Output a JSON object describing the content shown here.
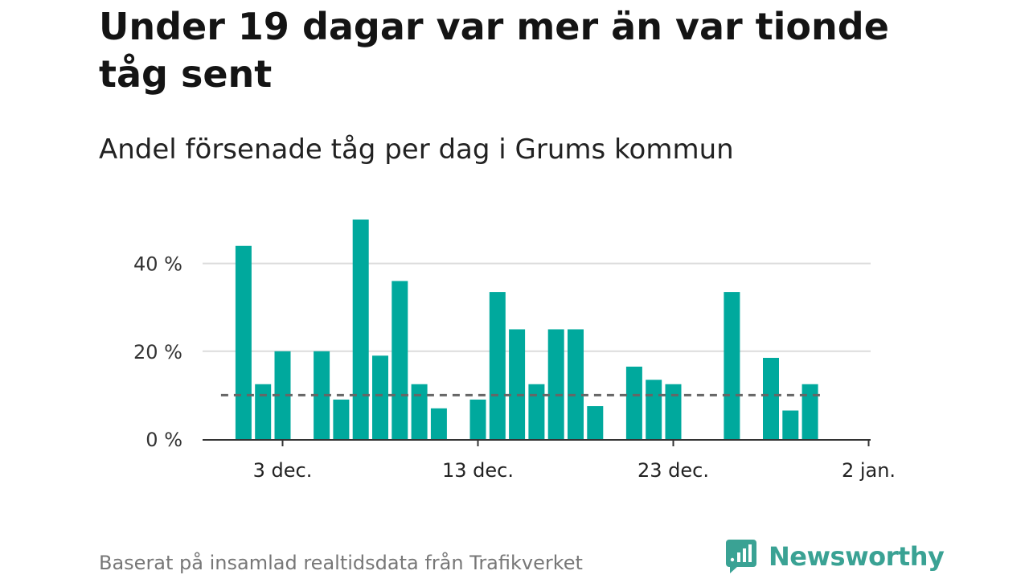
{
  "title": "Under 19 dagar var mer än var tionde tåg sent",
  "subtitle": "Andel försenade tåg per dag i Grums kommun",
  "footer": "Baserat på insamlad realtidsdata från Trafikverket",
  "brand": {
    "name": "Newsworthy",
    "icon": "newsworthy-logo-icon",
    "color": "#3aa294"
  },
  "chart_data": {
    "type": "bar",
    "x": [
      "2023-12-01",
      "2023-12-02",
      "2023-12-03",
      "2023-12-04",
      "2023-12-05",
      "2023-12-06",
      "2023-12-07",
      "2023-12-08",
      "2023-12-09",
      "2023-12-10",
      "2023-12-11",
      "2023-12-12",
      "2023-12-13",
      "2023-12-14",
      "2023-12-15",
      "2023-12-16",
      "2023-12-17",
      "2023-12-18",
      "2023-12-19",
      "2023-12-20",
      "2023-12-21",
      "2023-12-22",
      "2023-12-23",
      "2023-12-24",
      "2023-12-25",
      "2023-12-26",
      "2023-12-27",
      "2023-12-28",
      "2023-12-29",
      "2023-12-30",
      "2023-12-31"
    ],
    "values": [
      44,
      12.5,
      20,
      null,
      20,
      9,
      50,
      19,
      36,
      12.5,
      7,
      null,
      9,
      33.5,
      25,
      12.5,
      25,
      25,
      7.5,
      null,
      16.5,
      13.5,
      12.5,
      null,
      null,
      33.5,
      null,
      18.5,
      6.5,
      12.5,
      null
    ],
    "reference_line": 10,
    "ylim": [
      0,
      50
    ],
    "yticks": [
      0,
      20,
      40
    ],
    "ytick_labels": [
      "0 %",
      "20 %",
      "40 %"
    ],
    "xticks": [
      "2023-12-03",
      "2023-12-13",
      "2023-12-23",
      "2024-01-02"
    ],
    "xtick_labels": [
      "3 dec.",
      "13 dec.",
      "23 dec.",
      "2 jan."
    ],
    "xlabel": "",
    "ylabel": "",
    "grid": true,
    "bar_color": "#00a99d",
    "reference_color": "#666666"
  }
}
